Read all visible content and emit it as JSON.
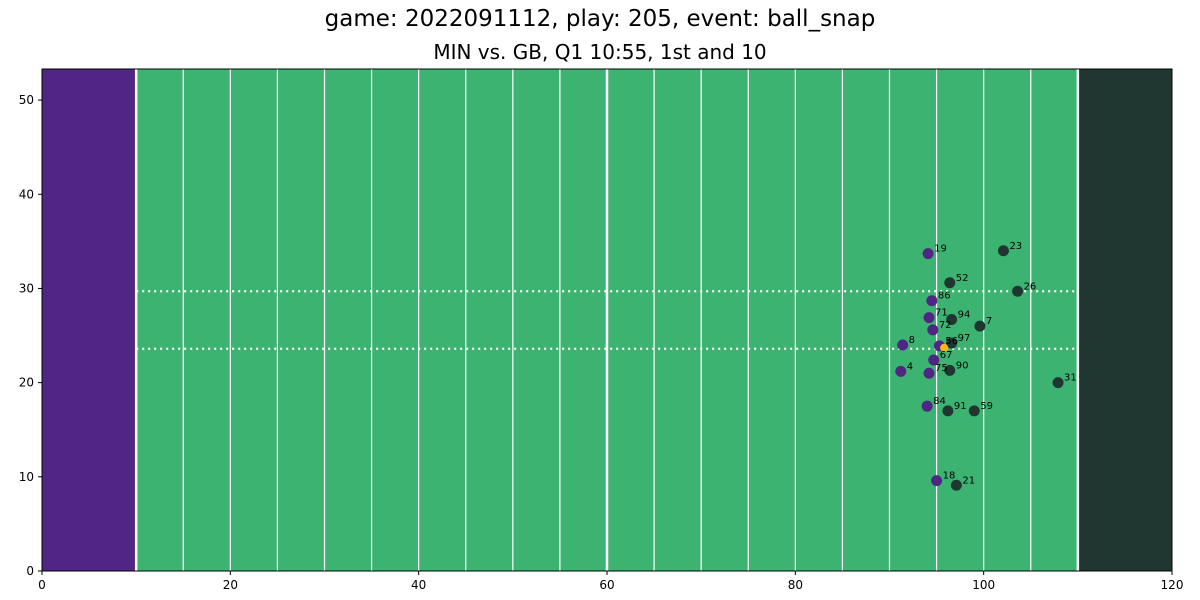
{
  "header": {
    "title": "game: 2022091112, play: 205, event: ball_snap",
    "subtitle": "MIN vs. GB, Q1 10:55, 1st and 10"
  },
  "chart_data": {
    "type": "scatter",
    "xlim": [
      0,
      120
    ],
    "ylim": [
      0,
      53.3
    ],
    "x_ticks": [
      0,
      20,
      40,
      60,
      80,
      100,
      120
    ],
    "y_ticks": [
      0,
      10,
      20,
      30,
      40,
      50
    ],
    "grid": false,
    "field": {
      "background_color": "#3db372",
      "left_endzone": {
        "range": [
          0,
          10
        ],
        "color": "#4f2683"
      },
      "right_endzone": {
        "range": [
          110,
          120
        ],
        "color": "#203731"
      },
      "yard_lines_every": 5,
      "hash_marks_y": [
        23.6,
        29.7
      ],
      "line_color": "#ffffff"
    },
    "series": [
      {
        "color": "#4f2683",
        "points": [
          {
            "x": 94.1,
            "y": 33.7,
            "label": "19"
          },
          {
            "x": 94.5,
            "y": 28.7,
            "label": "86"
          },
          {
            "x": 94.2,
            "y": 26.9,
            "label": "71"
          },
          {
            "x": 94.6,
            "y": 25.6,
            "label": "72"
          },
          {
            "x": 91.4,
            "y": 24.0,
            "label": "8"
          },
          {
            "x": 95.3,
            "y": 23.9,
            "label": "56"
          },
          {
            "x": 94.7,
            "y": 22.4,
            "label": "67"
          },
          {
            "x": 91.2,
            "y": 21.2,
            "label": "4"
          },
          {
            "x": 94.2,
            "y": 21.0,
            "label": "75"
          },
          {
            "x": 94.0,
            "y": 17.5,
            "label": "84"
          },
          {
            "x": 95.0,
            "y": 9.6,
            "label": "18"
          }
        ]
      },
      {
        "color": "#203731",
        "points": [
          {
            "x": 102.1,
            "y": 34.0,
            "label": "23"
          },
          {
            "x": 96.4,
            "y": 30.6,
            "label": "52"
          },
          {
            "x": 103.6,
            "y": 29.7,
            "label": "26"
          },
          {
            "x": 96.6,
            "y": 26.7,
            "label": "94"
          },
          {
            "x": 99.6,
            "y": 26.0,
            "label": "7"
          },
          {
            "x": 96.6,
            "y": 24.2,
            "label": "97"
          },
          {
            "x": 96.4,
            "y": 21.3,
            "label": "90"
          },
          {
            "x": 107.9,
            "y": 20.0,
            "label": "31"
          },
          {
            "x": 96.2,
            "y": 17.0,
            "label": "91"
          },
          {
            "x": 99.0,
            "y": 17.0,
            "label": "59"
          },
          {
            "x": 97.1,
            "y": 9.1,
            "label": "21"
          }
        ]
      },
      {
        "color": "#ffb612",
        "points": [
          {
            "x": 95.8,
            "y": 23.7,
            "label": ""
          }
        ]
      }
    ]
  }
}
